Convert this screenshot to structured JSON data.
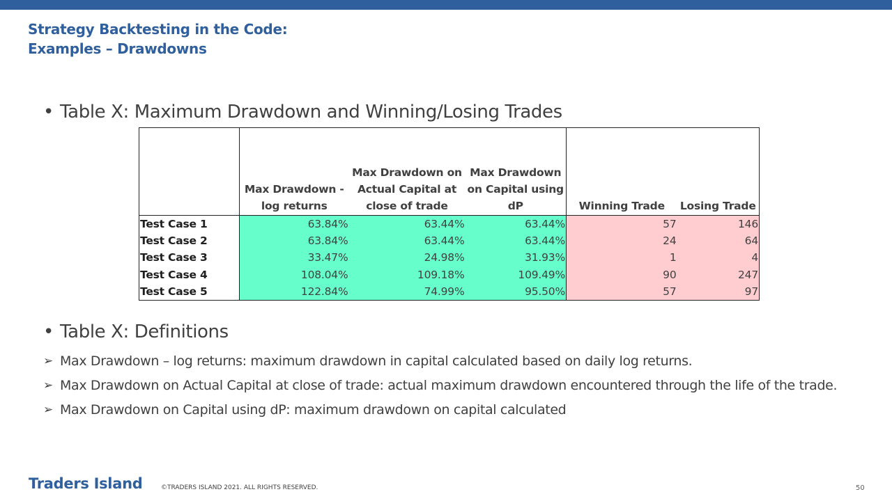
{
  "slide": {
    "title_line1": "Strategy Backtesting in the Code:",
    "title_line2": "Examples – Drawdowns",
    "bullet1": "Table X: Maximum Drawdown and Winning/Losing Trades",
    "bullet2": "Table X: Definitions",
    "bullet_glyph": "•",
    "arrow_glyph": "➢"
  },
  "table": {
    "headers": [
      "",
      "Max Drawdown - log returns",
      "Max Drawdown on Actual Capital at close of trade",
      "Max Drawdown on Capital using dP",
      "Winning Trade",
      "Losing Trade"
    ],
    "rows": [
      [
        "Test Case 1",
        "63.84%",
        "63.44%",
        "63.44%",
        "57",
        "146"
      ],
      [
        "Test Case 2",
        "63.84%",
        "63.44%",
        "63.44%",
        "24",
        "64"
      ],
      [
        "Test Case 3",
        "33.47%",
        "24.98%",
        "31.93%",
        "1",
        "4"
      ],
      [
        "Test Case 4",
        "108.04%",
        "109.18%",
        "109.49%",
        "90",
        "247"
      ],
      [
        "Test Case 5",
        "122.84%",
        "74.99%",
        "95.50%",
        "57",
        "97"
      ]
    ],
    "colors": {
      "drawdown_fill": "#66ffcc",
      "trades_fill": "#ffccd0"
    }
  },
  "definitions": [
    "Max Drawdown – log returns: maximum drawdown in capital calculated based on daily log returns.",
    "Max Drawdown on Actual Capital at close of trade: actual maximum drawdown encountered through the life of the trade.",
    "Max Drawdown on Capital using dP: maximum drawdown on capital calculated"
  ],
  "footer": {
    "brand": "Traders Island",
    "copyright": "©TRADERS ISLAND 2021. ALL RIGHTS RESERVED.",
    "page_number": "50"
  },
  "theme": {
    "accent": "#2f5f9c",
    "text": "#404040"
  }
}
